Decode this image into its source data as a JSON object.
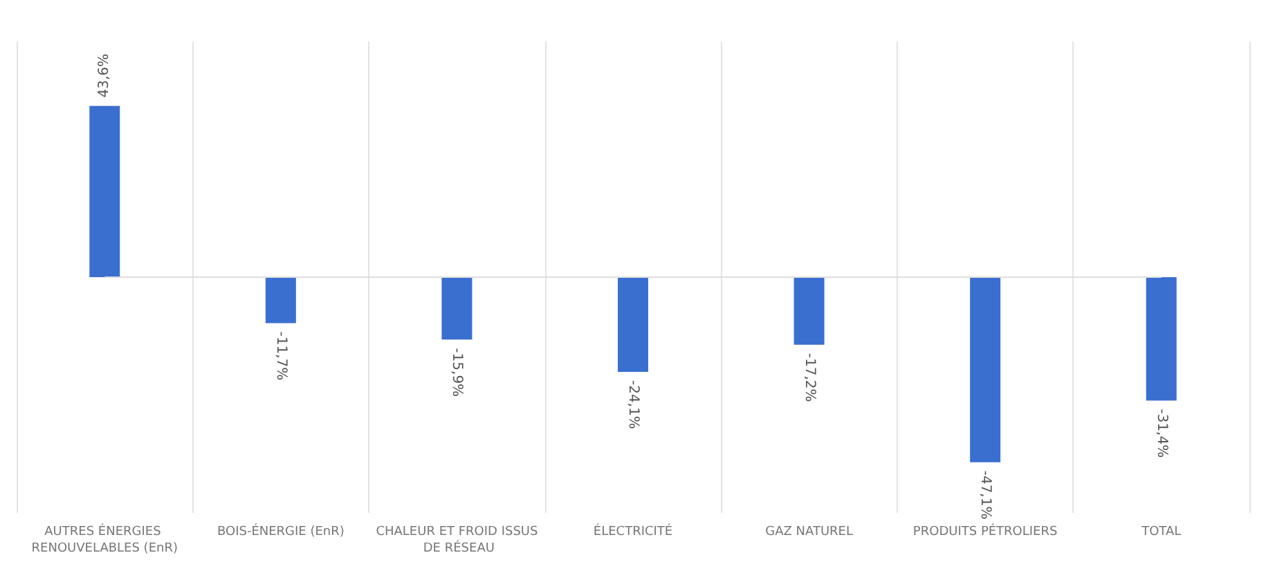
{
  "chart_data": {
    "type": "bar",
    "categories": [
      "AUTRES ÉNERGIES RENOUVELABLES (EnR)",
      "BOIS-ÉNERGIE (EnR)",
      "CHALEUR ET FROID ISSUS DE RÉSEAU",
      "ÉLECTRICITÉ",
      "GAZ NATUREL",
      "PRODUITS PÉTROLIERS",
      "TOTAL"
    ],
    "values": [
      43.6,
      -11.7,
      -15.9,
      -24.1,
      -17.2,
      -47.1,
      -31.4
    ],
    "value_labels": [
      "43,6%",
      "-11,7%",
      "-15,9%",
      "-24,1%",
      "-17,2%",
      "-47,1%",
      "-31,4%"
    ],
    "color": "#3a6fd0",
    "grid": "x"
  }
}
